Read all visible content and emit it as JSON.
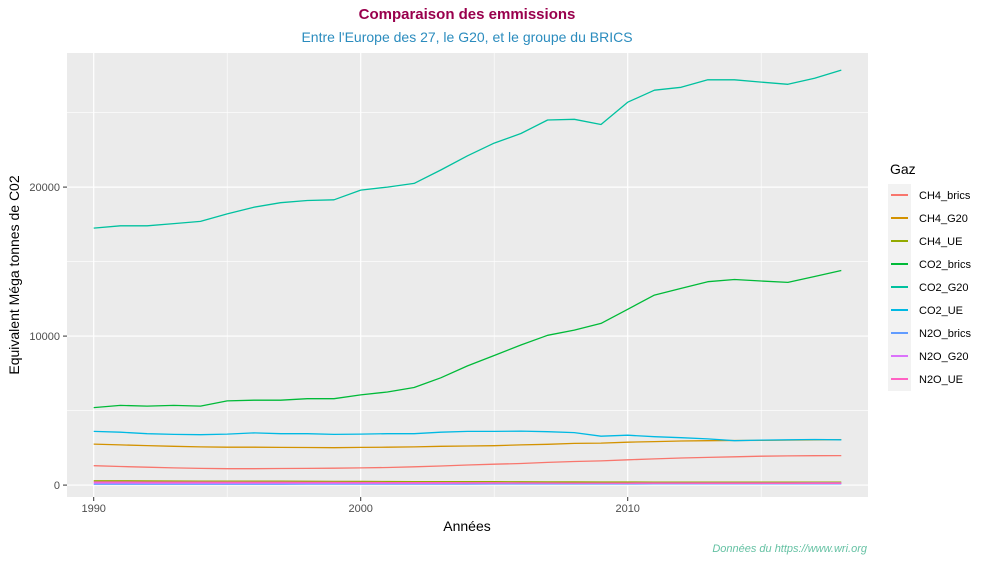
{
  "title": "Comparaison des emmissions",
  "subtitle": "Entre l'Europe des 27, le G20, et le groupe du BRICS",
  "caption": "Données du https://www.wri.org",
  "colors": {
    "title": "#99004d",
    "subtitle": "#2b8cbe",
    "caption": "#66c2a4",
    "panel_background": "#ebebeb",
    "grid": "#ffffff"
  },
  "chart_data": {
    "type": "line",
    "xlabel": "Années",
    "ylabel": "Equivalent Méga tonnes de C02",
    "xlim": [
      1989,
      2019
    ],
    "ylim": [
      -800,
      29000
    ],
    "xticks": [
      1990,
      2000,
      2010
    ],
    "yticks": [
      0,
      10000,
      20000
    ],
    "ytick_labels": [
      "0",
      "10000",
      "20000"
    ],
    "grid": true,
    "legend": {
      "title": "Gaz",
      "position": "right"
    },
    "x": [
      1990,
      1991,
      1992,
      1993,
      1994,
      1995,
      1996,
      1997,
      1998,
      1999,
      2000,
      2001,
      2002,
      2003,
      2004,
      2005,
      2006,
      2007,
      2008,
      2009,
      2010,
      2011,
      2012,
      2013,
      2014,
      2015,
      2016,
      2017,
      2018
    ],
    "series": [
      {
        "name": "CH4_brics",
        "color": "#f8766d",
        "values": [
          1300,
          1250,
          1200,
          1150,
          1120,
          1100,
          1100,
          1110,
          1120,
          1130,
          1150,
          1180,
          1230,
          1280,
          1350,
          1400,
          1450,
          1520,
          1580,
          1620,
          1700,
          1760,
          1820,
          1860,
          1900,
          1940,
          1960,
          1970,
          1980
        ]
      },
      {
        "name": "CH4_G20",
        "color": "#d39200",
        "values": [
          2750,
          2700,
          2650,
          2600,
          2560,
          2540,
          2540,
          2530,
          2520,
          2510,
          2530,
          2540,
          2560,
          2600,
          2620,
          2640,
          2700,
          2740,
          2800,
          2820,
          2880,
          2920,
          2960,
          2980,
          2990,
          3000,
          3020,
          3040,
          3050
        ]
      },
      {
        "name": "CH4_UE",
        "color": "#93aa00",
        "values": [
          290,
          285,
          280,
          275,
          270,
          265,
          262,
          258,
          255,
          250,
          245,
          240,
          236,
          232,
          228,
          224,
          220,
          216,
          212,
          208,
          205,
          202,
          200,
          198,
          196,
          195,
          194,
          193,
          192
        ]
      },
      {
        "name": "CO2_brics",
        "color": "#00ba38",
        "values": [
          5200,
          5350,
          5300,
          5350,
          5300,
          5650,
          5700,
          5700,
          5800,
          5800,
          6050,
          6250,
          6550,
          7200,
          8000,
          8700,
          9400,
          10050,
          10400,
          10850,
          11800,
          12750,
          13200,
          13650,
          13800,
          13700,
          13600,
          14000,
          14400
        ]
      },
      {
        "name": "CO2_G20",
        "color": "#00c19f",
        "values": [
          17250,
          17400,
          17400,
          17550,
          17700,
          18200,
          18650,
          18950,
          19100,
          19150,
          19800,
          20000,
          20250,
          21150,
          22100,
          22950,
          23600,
          24500,
          24550,
          24200,
          25700,
          26500,
          26700,
          27200,
          27200,
          27050,
          26900,
          27300,
          27850
        ]
      },
      {
        "name": "CO2_UE",
        "color": "#00b9e3",
        "values": [
          3600,
          3550,
          3450,
          3400,
          3380,
          3420,
          3500,
          3450,
          3450,
          3400,
          3420,
          3450,
          3450,
          3550,
          3600,
          3600,
          3620,
          3580,
          3520,
          3280,
          3350,
          3250,
          3180,
          3100,
          2980,
          3020,
          3040,
          3060,
          3040
        ]
      },
      {
        "name": "N2O_brics",
        "color": "#619cff",
        "values": [
          60,
          60,
          60,
          60,
          60,
          62,
          62,
          62,
          63,
          63,
          64,
          65,
          66,
          67,
          68,
          70,
          71,
          72,
          73,
          74,
          75,
          76,
          78,
          79,
          80,
          81,
          82,
          83,
          84
        ]
      },
      {
        "name": "N2O_G20",
        "color": "#db72fb",
        "values": [
          130,
          130,
          128,
          126,
          124,
          124,
          124,
          124,
          125,
          125,
          126,
          127,
          128,
          129,
          130,
          131,
          132,
          133,
          134,
          135,
          136,
          137,
          138,
          139,
          140,
          141,
          142,
          143,
          144
        ]
      },
      {
        "name": "N2O_UE",
        "color": "#ff61c3",
        "values": [
          210,
          205,
          200,
          195,
          190,
          188,
          186,
          184,
          182,
          180,
          170,
          165,
          160,
          158,
          156,
          150,
          145,
          140,
          135,
          130,
          128,
          126,
          124,
          122,
          120,
          118,
          117,
          116,
          115
        ]
      }
    ]
  }
}
